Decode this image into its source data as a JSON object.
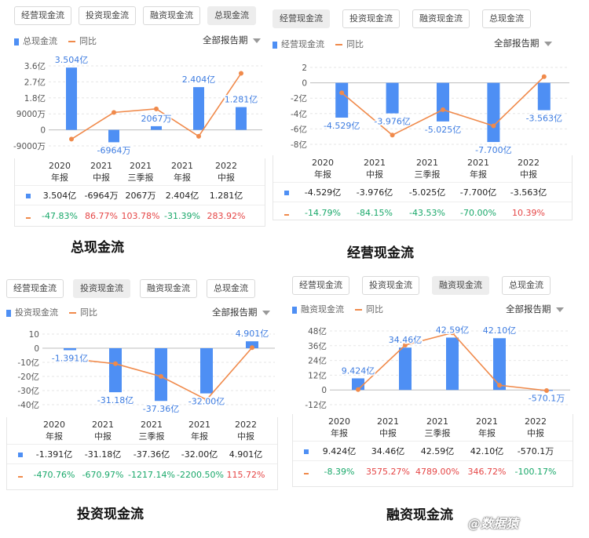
{
  "tab_labels": [
    "经营现金流",
    "投资现金流",
    "融资现金流",
    "总现金流"
  ],
  "period_label": "全部报告期",
  "yoy_label": "同比",
  "watermark": "@数据猿",
  "colors": {
    "bar": "#4e8ff4",
    "line": "#f08a4b",
    "positive": "#e54545",
    "negative": "#19a86a"
  },
  "categories": [
    [
      "2020",
      "年报"
    ],
    [
      "2021",
      "中报"
    ],
    [
      "2021",
      "三季报"
    ],
    [
      "2021",
      "年报"
    ],
    [
      "2022",
      "中报"
    ]
  ],
  "chart_data": [
    {
      "type": "bar",
      "caption": "总现金流",
      "series_label": "总现金流",
      "active_tab": 3,
      "units": "亿元",
      "bar_values": [
        3.504,
        -0.6964,
        0.2067,
        2.404,
        1.281
      ],
      "bar_labels": [
        "3.504亿",
        "-6964万",
        "2067万",
        "2.404亿",
        "1.281亿"
      ],
      "yoy_values": [
        -47.83,
        86.77,
        103.78,
        -31.39,
        283.92
      ],
      "yoy_labels": [
        "-47.83%",
        "86.77%",
        "103.78%",
        "-31.39%",
        "283.92%"
      ],
      "yticks": [
        {
          "v": 3.6,
          "t": "3.6亿"
        },
        {
          "v": 2.7,
          "t": "2.7亿"
        },
        {
          "v": 1.8,
          "t": "1.8亿"
        },
        {
          "v": 0.9,
          "t": "9000万"
        },
        {
          "v": 0,
          "t": "0"
        },
        {
          "v": -0.9,
          "t": "-9000万"
        }
      ],
      "ylim": [
        -0.9,
        3.6
      ],
      "line_points": [
        -0.52,
        0.98,
        1.18,
        -0.36,
        3.18
      ]
    },
    {
      "type": "bar",
      "caption": "经营现金流",
      "series_label": "经营现金流",
      "active_tab": 0,
      "units": "亿元",
      "bar_values": [
        -4.529,
        -3.976,
        -5.025,
        -7.7,
        -3.563
      ],
      "bar_labels": [
        "-4.529亿",
        "-3.976亿",
        "-5.025亿",
        "-7.700亿",
        "-3.563亿"
      ],
      "yoy_values": [
        -14.79,
        -84.15,
        -43.53,
        -70.0,
        10.39
      ],
      "yoy_labels": [
        "-14.79%",
        "-84.15%",
        "-43.53%",
        "-70.00%",
        "10.39%"
      ],
      "yticks": [
        {
          "v": 2,
          "t": "2"
        },
        {
          "v": 0,
          "t": "0"
        },
        {
          "v": -2,
          "t": "-2亿"
        },
        {
          "v": -4,
          "t": "-4亿"
        },
        {
          "v": -6,
          "t": "-6亿"
        },
        {
          "v": -8,
          "t": "-8亿"
        }
      ],
      "ylim": [
        -8,
        2
      ],
      "line_points": [
        -1.3,
        -6.8,
        -3.5,
        -5.6,
        0.8
      ]
    },
    {
      "type": "bar",
      "caption": "投资现金流",
      "series_label": "投资现金流",
      "active_tab": 1,
      "units": "亿元",
      "bar_values": [
        -1.391,
        -31.18,
        -37.36,
        -32.0,
        4.901
      ],
      "bar_labels": [
        "-1.391亿",
        "-31.18亿",
        "-37.36亿",
        "-32.00亿",
        "4.901亿"
      ],
      "yoy_values": [
        -470.76,
        -670.97,
        -1217.14,
        -2200.5,
        115.72
      ],
      "yoy_labels": [
        "-470.76%",
        "-670.97%",
        "-1217.14%",
        "-2200.50%",
        "115.72%"
      ],
      "yticks": [
        {
          "v": 10,
          "t": "10"
        },
        {
          "v": 0,
          "t": "0"
        },
        {
          "v": -10,
          "t": "-10亿"
        },
        {
          "v": -20,
          "t": "-20亿"
        },
        {
          "v": -30,
          "t": "-30亿"
        },
        {
          "v": -40,
          "t": "-40亿"
        }
      ],
      "ylim": [
        -40,
        10
      ],
      "line_points": [
        -7.5,
        -11,
        -20,
        -36.5,
        0.4
      ]
    },
    {
      "type": "bar",
      "caption": "融资现金流",
      "series_label": "融资现金流",
      "active_tab": 2,
      "units": "亿元",
      "bar_values": [
        9.424,
        34.46,
        42.59,
        42.1,
        -0.05701
      ],
      "bar_labels": [
        "9.424亿",
        "34.46亿",
        "42.59亿",
        "42.10亿",
        "-570.1万"
      ],
      "yoy_values": [
        -8.39,
        3575.27,
        4789.0,
        346.72,
        -100.17
      ],
      "yoy_labels": [
        "-8.39%",
        "3575.27%",
        "4789.00%",
        "346.72%",
        "-100.17%"
      ],
      "yticks": [
        {
          "v": 48,
          "t": "48亿"
        },
        {
          "v": 36,
          "t": "36亿"
        },
        {
          "v": 24,
          "t": "24亿"
        },
        {
          "v": 12,
          "t": "12亿"
        },
        {
          "v": 0,
          "t": "0"
        },
        {
          "v": -12,
          "t": "-12亿"
        }
      ],
      "ylim": [
        -12,
        48
      ],
      "line_points": [
        0.3,
        36.5,
        46.5,
        3.8,
        -0.5
      ]
    }
  ]
}
